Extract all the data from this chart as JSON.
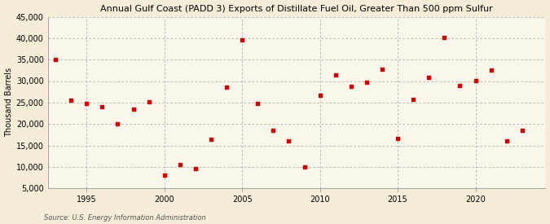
{
  "title": "Annual Gulf Coast (PADD 3) Exports of Distillate Fuel Oil, Greater Than 500 ppm Sulfur",
  "ylabel": "Thousand Barrels",
  "source": "Source: U.S. Energy Information Administration",
  "background_color": "#f5edd8",
  "plot_background_color": "#faf6eb",
  "marker_color": "#cc0000",
  "years": [
    1993,
    1994,
    1995,
    1996,
    1997,
    1998,
    1999,
    2000,
    2001,
    2002,
    2003,
    2004,
    2005,
    2006,
    2007,
    2008,
    2009,
    2010,
    2011,
    2012,
    2013,
    2014,
    2015,
    2016,
    2017,
    2018,
    2019,
    2020,
    2021,
    2022,
    2023
  ],
  "values": [
    35000,
    25500,
    24800,
    24000,
    20000,
    23500,
    25200,
    8000,
    10500,
    9500,
    16500,
    28500,
    39500,
    24700,
    18500,
    16000,
    10000,
    26700,
    31500,
    28800,
    29800,
    32800,
    16700,
    25800,
    30800,
    40200,
    29000,
    30100,
    32500,
    16000,
    18500
  ],
  "ylim": [
    5000,
    45000
  ],
  "yticks": [
    5000,
    10000,
    15000,
    20000,
    25000,
    30000,
    35000,
    40000,
    45000
  ],
  "xlim": [
    1992.5,
    2024.5
  ],
  "xticks": [
    1995,
    2000,
    2005,
    2010,
    2015,
    2020
  ]
}
